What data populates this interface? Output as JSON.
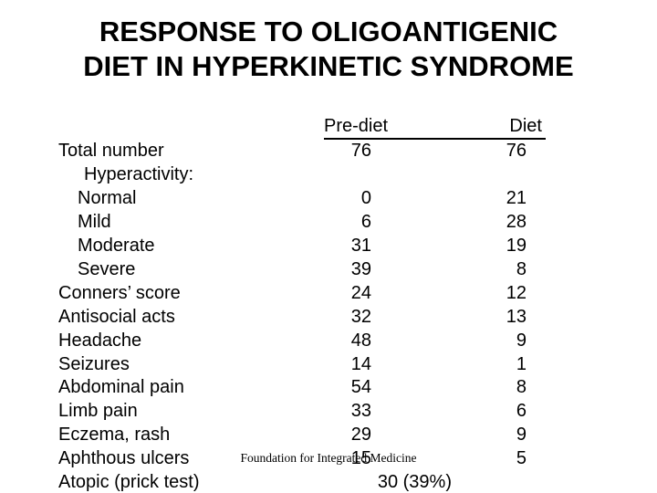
{
  "slide": {
    "title": {
      "line1": "RESPONSE TO OLIGOANTIGENIC",
      "line2": "DIET IN HYPERKINETIC SYNDROME"
    },
    "footer": "Foundation for Integrated Medicine",
    "colors": {
      "background": "#ffffff",
      "text": "#000000"
    }
  },
  "table": {
    "column_headers": {
      "pre_diet": "Pre-diet",
      "diet": "Diet"
    },
    "rows": [
      {
        "label": "Total number",
        "indent": 0,
        "pre_diet": "76",
        "diet": "76"
      },
      {
        "label": "Hyperactivity:",
        "indent": 2,
        "pre_diet": "",
        "diet": ""
      },
      {
        "label": "Normal",
        "indent": 1,
        "pre_diet": "0",
        "diet": "21"
      },
      {
        "label": "Mild",
        "indent": 1,
        "pre_diet": "6",
        "diet": "28"
      },
      {
        "label": "Moderate",
        "indent": 1,
        "pre_diet": "31",
        "diet": "19"
      },
      {
        "label": "Severe",
        "indent": 1,
        "pre_diet": "39",
        "diet": "8"
      },
      {
        "label": "Conners’ score",
        "indent": 0,
        "pre_diet": "24",
        "diet": "12"
      },
      {
        "label": "Antisocial acts",
        "indent": 0,
        "pre_diet": "32",
        "diet": "13"
      },
      {
        "label": "Headache",
        "indent": 0,
        "pre_diet": "48",
        "diet": "9"
      },
      {
        "label": "Seizures",
        "indent": 0,
        "pre_diet": "14",
        "diet": "1"
      },
      {
        "label": "Abdominal pain",
        "indent": 0,
        "pre_diet": "54",
        "diet": "8"
      },
      {
        "label": "Limb pain",
        "indent": 0,
        "pre_diet": "33",
        "diet": "6"
      },
      {
        "label": "Eczema, rash",
        "indent": 0,
        "pre_diet": "29",
        "diet": "9"
      },
      {
        "label": "Aphthous ulcers",
        "indent": 0,
        "pre_diet": "15",
        "diet": "5"
      },
      {
        "label": "Atopic (prick test)",
        "indent": 0,
        "pre_diet": "30 (39%)",
        "diet": ""
      }
    ]
  }
}
